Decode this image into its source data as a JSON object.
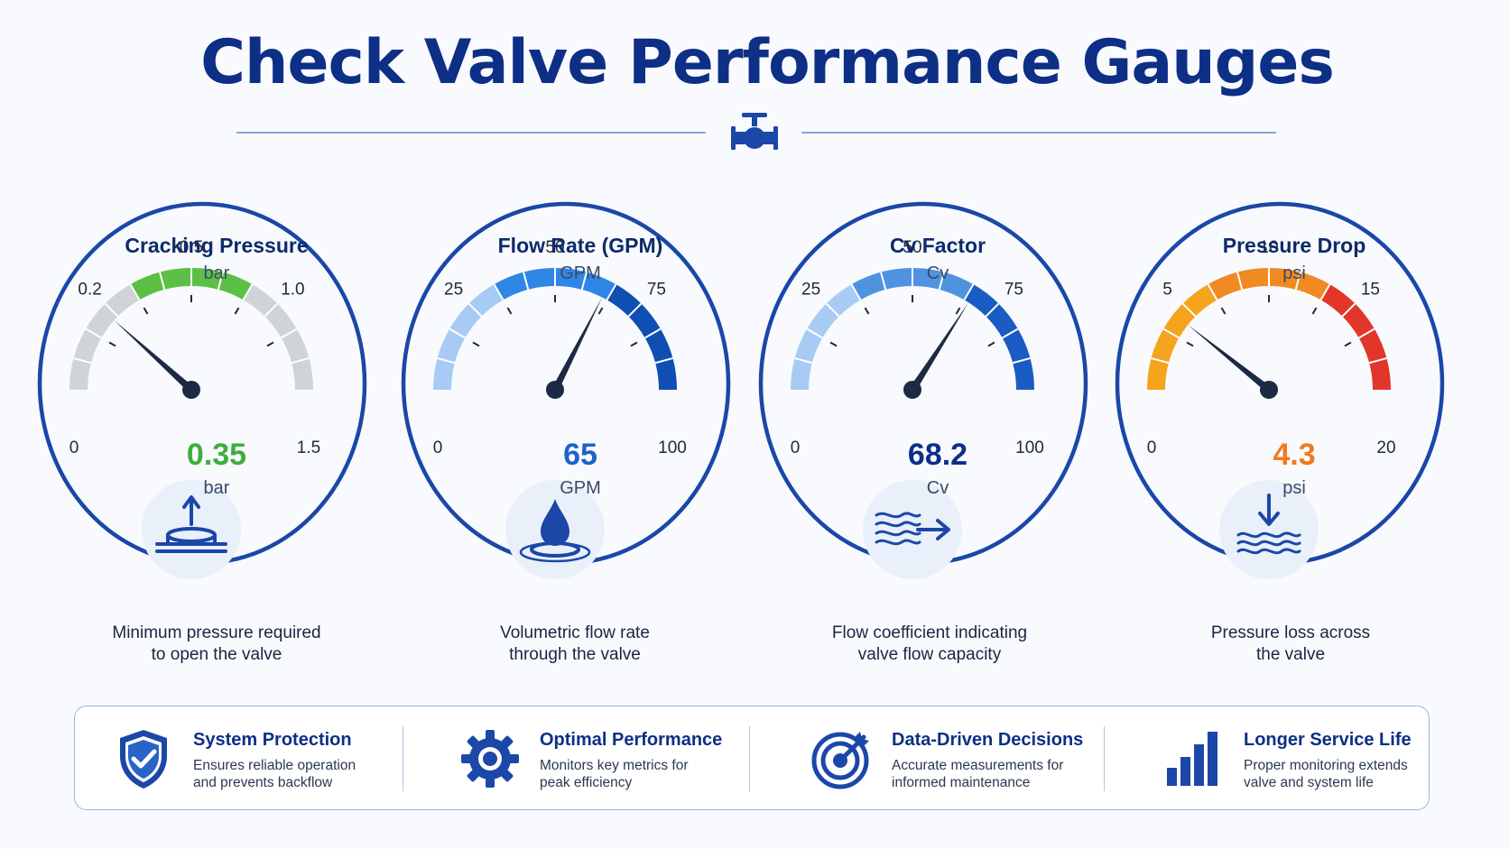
{
  "title": "Check Valve Performance Gauges",
  "gauges": [
    {
      "title": "Cracking Pressure",
      "unit": "bar",
      "value": 0.35,
      "value_text": "0.35",
      "value_color": "#3fae3c",
      "tick_labels": [
        "0",
        "0.2",
        "0.5",
        "1.0",
        "1.5"
      ],
      "zone_colors": [
        "#cfd4d9",
        "#5cbf46",
        "#cfd4d9"
      ],
      "icon": "valve-disc-arrow-up-icon",
      "description": [
        "Minimum pressure required",
        "to open the valve"
      ]
    },
    {
      "title": "Flow Rate (GPM)",
      "unit": "GPM",
      "value": 65,
      "value_text": "65",
      "value_color": "#1f62c8",
      "tick_labels": [
        "0",
        "25",
        "50",
        "75",
        "100"
      ],
      "zone_colors": [
        "#a7cbf5",
        "#2f86e6",
        "#0f4fb4"
      ],
      "icon": "water-drop-icon",
      "description": [
        "Volumetric flow rate",
        "through the valve"
      ]
    },
    {
      "title": "Cv Factor",
      "unit": "Cv",
      "value": 68.2,
      "value_text": "68.2",
      "value_color": "#0d2f86",
      "tick_labels": [
        "0",
        "25",
        "50",
        "75",
        "100"
      ],
      "zone_colors": [
        "#a7cbf5",
        "#4f93e0",
        "#1a5cc4"
      ],
      "icon": "flow-arrow-icon",
      "description": [
        "Flow coefficient indicating",
        "valve flow capacity"
      ]
    },
    {
      "title": "Pressure Drop",
      "unit": "psi",
      "value": 4.3,
      "value_text": "4.3",
      "value_color": "#f07a1e",
      "tick_labels": [
        "0",
        "5",
        "10",
        "15",
        "20"
      ],
      "zone_colors": [
        "#f6a31d",
        "#f08a22",
        "#e2362a"
      ],
      "icon": "arrow-down-waves-icon",
      "description": [
        "Pressure loss across",
        "the valve"
      ]
    }
  ],
  "benefits": [
    {
      "title": "System Protection",
      "description": "Ensures reliable operation\nand prevents backflow",
      "icon": "shield-check-icon"
    },
    {
      "title": "Optimal Performance",
      "description": "Monitors key metrics for\npeak efficiency",
      "icon": "gear-icon"
    },
    {
      "title": "Data-Driven Decisions",
      "description": "Accurate measurements for\ninformed maintenance",
      "icon": "target-icon"
    },
    {
      "title": "Longer Service Life",
      "description": "Proper monitoring extends\nvalve and system life",
      "icon": "bar-chart-icon"
    }
  ],
  "colors": {
    "primary": "#0d2f86",
    "ring": "#1a47a8",
    "icon_circle": "#e9f0fa",
    "icon_stroke": "#1a47a8"
  }
}
